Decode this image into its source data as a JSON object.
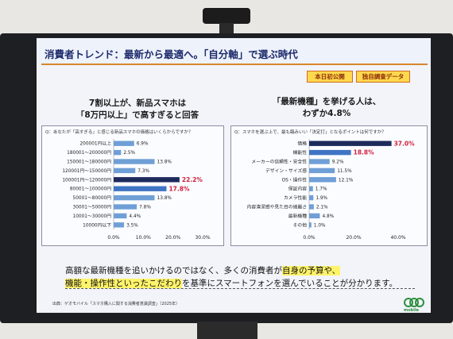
{
  "slide": {
    "title": "消費者トレンド：最新から最適へ。「自分軸」で選ぶ時代",
    "badges": [
      "本日初公開",
      "独自調査データ"
    ],
    "left": {
      "headline_line1": "7割以上が、新品スマホは",
      "headline_line2": "「8万円以上」で高すぎると回答",
      "question": "Q：あなたが「高すぎる」と感じる新品スマホの価格はいくらからですか？"
    },
    "right": {
      "headline_line1": "「最新機種」を挙げる人は、",
      "headline_line2": "わずか4.8%",
      "question": "Q：スマホを選ぶ上で、最も臨みいい「決定打」となるポイントは何ですか？"
    },
    "summary": {
      "line1_a": "高額な最新機種を追いかけるのではなく、多くの消費者が",
      "line1_b": "自身の予算や、",
      "line2_a": "機能・操作性といったこだわり",
      "line2_b": "を基準にスマートフォンを選んでいることが分かります。"
    },
    "source": "出典：ゲオモバイル「スマホ購入に関する消費者意識調査」（2025年）",
    "logo_text": "mobile"
  },
  "chart_data": [
    {
      "type": "bar",
      "orientation": "horizontal",
      "categories": [
        "200001円以上",
        "180001～200000円",
        "150001～180000円",
        "120001円～150000円",
        "100001円～120000円",
        "80001～100000円",
        "50001～80000円",
        "30001～50000円",
        "10001～30000円",
        "10000円以下"
      ],
      "values": [
        6.9,
        2.5,
        13.8,
        7.3,
        22.2,
        17.8,
        13.8,
        7.8,
        4.4,
        3.5
      ],
      "value_labels": [
        "6.9%",
        "2.5%",
        "13.8%",
        "7.3%",
        "22.2%",
        "17.8%",
        "13.8%",
        "7.8%",
        "4.4%",
        "3.5%"
      ],
      "highlight": [
        4,
        5
      ],
      "xlim": [
        0,
        30
      ],
      "xticks": [
        "0.0%",
        "10.0%",
        "20.0%",
        "30.0%"
      ],
      "colors": {
        "normal": "#6f9fd6",
        "dark": "#1d2a5c",
        "mid": "#3f74c4",
        "highlight_text": "#d21f3c"
      }
    },
    {
      "type": "bar",
      "orientation": "horizontal",
      "categories": [
        "価格",
        "機能性",
        "メーカーの信頼性・安全性",
        "デザイン・サイズ感",
        "OS・操作性",
        "保証内容",
        "カメラ性能",
        "内容清潔感や見た目の綺麗さ",
        "最新機種",
        "その他"
      ],
      "values": [
        37.0,
        18.8,
        9.2,
        11.5,
        12.1,
        1.7,
        1.9,
        2.1,
        4.8,
        1.0
      ],
      "value_labels": [
        "37.0%",
        "18.8%",
        "9.2%",
        "11.5%",
        "12.1%",
        "1.7%",
        "1.9%",
        "2.1%",
        "4.8%",
        "1.0%"
      ],
      "highlight": [
        0,
        1
      ],
      "xlim": [
        0,
        40
      ],
      "xticks": [
        "0.0%",
        "20.0%",
        "40.0%"
      ],
      "colors": {
        "normal": "#6f9fd6",
        "dark": "#1d2a5c",
        "mid": "#3f74c4",
        "highlight_text": "#d21f3c"
      }
    }
  ]
}
